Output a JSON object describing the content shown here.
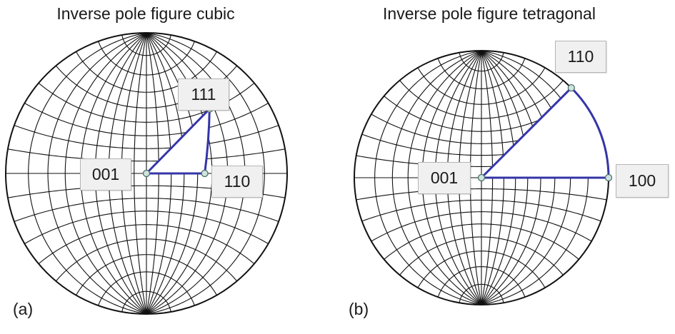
{
  "panels": [
    {
      "title": "Inverse pole figure cubic",
      "tag": "(a)",
      "labels": [
        "001",
        "111",
        "110"
      ]
    },
    {
      "title": "Inverse pole figure tetragonal",
      "tag": "(b)",
      "labels": [
        "001",
        "110",
        "100"
      ]
    }
  ],
  "colors": {
    "grid": "#111111",
    "triangle": "#3535a8",
    "pole_marker_fill": "#cfe3df",
    "pole_marker_stroke": "#4a6e68"
  },
  "diagram": {
    "type": "stereographic Wulff net with standard stereographic triangle",
    "grid_step_deg": 10
  }
}
